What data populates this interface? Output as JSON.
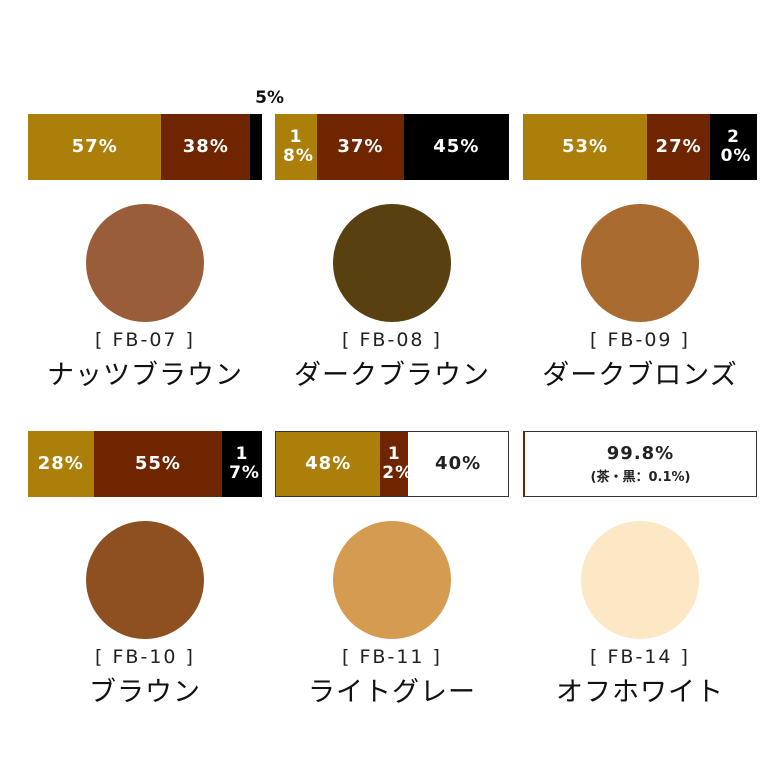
{
  "colors": {
    "gold": "#ac7f0a",
    "brown": "#6e2500",
    "black": "#000000",
    "white": "#ffffff"
  },
  "products": [
    {
      "code": "[ FB-07 ]",
      "name": "ナッツブラウン",
      "swatch": "#9a5d39",
      "segments": [
        {
          "label": "57%",
          "value": 57,
          "color": "gold"
        },
        {
          "label": "38%",
          "value": 38,
          "color": "brown"
        },
        {
          "label": "5%",
          "value": 5,
          "color": "black"
        }
      ]
    },
    {
      "code": "[ FB-08 ]",
      "name": "ダークブラウン",
      "swatch": "#584011",
      "segments": [
        {
          "label": "18%",
          "value": 18,
          "color": "gold"
        },
        {
          "label": "37%",
          "value": 37,
          "color": "brown"
        },
        {
          "label": "45%",
          "value": 45,
          "color": "black"
        }
      ]
    },
    {
      "code": "[ FB-09 ]",
      "name": "ダークブロンズ",
      "swatch": "#a96b30",
      "segments": [
        {
          "label": "53%",
          "value": 53,
          "color": "gold"
        },
        {
          "label": "27%",
          "value": 27,
          "color": "brown"
        },
        {
          "label": "20%",
          "value": 20,
          "color": "black"
        }
      ]
    },
    {
      "code": "[ FB-10 ]",
      "name": "ブラウン",
      "swatch": "#8e5020",
      "segments": [
        {
          "label": "28%",
          "value": 28,
          "color": "gold"
        },
        {
          "label": "55%",
          "value": 55,
          "color": "brown"
        },
        {
          "label": "17%",
          "value": 17,
          "color": "black"
        }
      ]
    },
    {
      "code": "[ FB-11 ]",
      "name": "ライトグレー",
      "swatch": "#d49b51",
      "segments": [
        {
          "label": "48%",
          "value": 48,
          "color": "gold"
        },
        {
          "label": "12%",
          "value": 12,
          "color": "brown"
        },
        {
          "label": "40%",
          "value": 40,
          "color": "white"
        }
      ]
    },
    {
      "code": "[ FB-14 ]",
      "name": "オフホワイト",
      "swatch": "#fde8c5",
      "offwhite": {
        "main": "99.8%",
        "sub": "(茶・黒：0.1%)"
      }
    }
  ]
}
